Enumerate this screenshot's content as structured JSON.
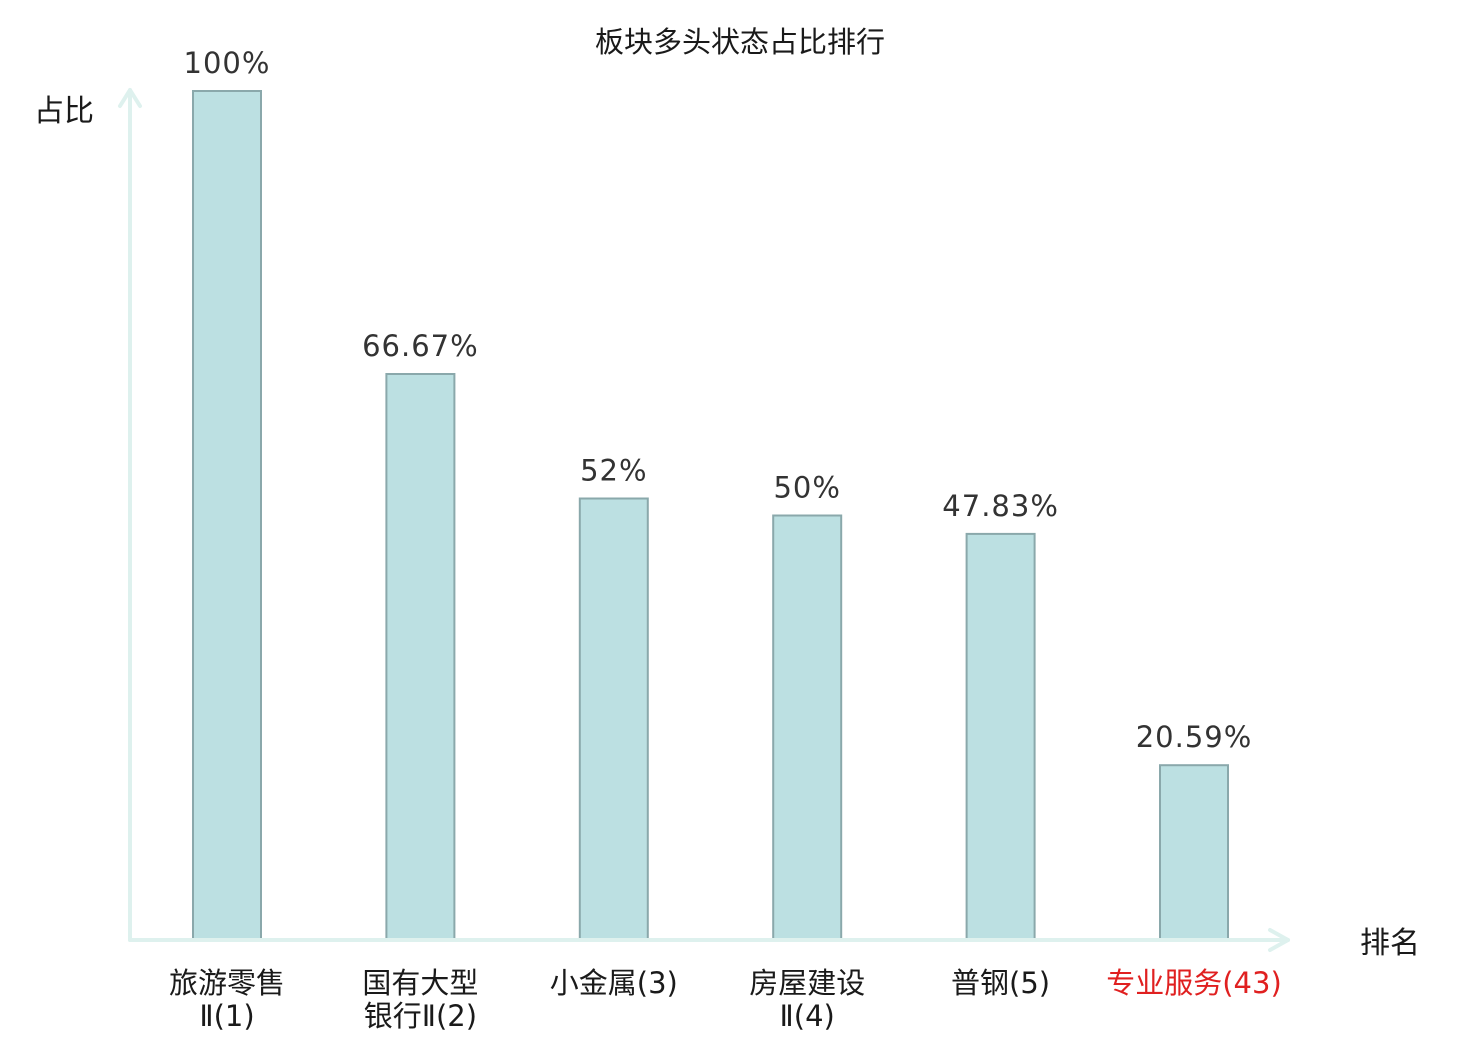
{
  "chart_data": {
    "type": "bar",
    "title": "板块多头状态占比排行",
    "ylabel": "占比",
    "xlabel": "排名",
    "ylim": [
      0,
      100
    ],
    "grid": false,
    "legend": "none",
    "categories": [
      [
        "旅游零售",
        "Ⅱ(1)"
      ],
      [
        "国有大型",
        "银行Ⅱ(2)"
      ],
      [
        "小金属(3)"
      ],
      [
        "房屋建设",
        "Ⅱ(4)"
      ],
      [
        "普钢(5)"
      ],
      [
        "专业服务(43)"
      ]
    ],
    "values": [
      100,
      66.67,
      52,
      50,
      47.83,
      20.59
    ],
    "value_labels": [
      "100%",
      "66.67%",
      "52%",
      "50%",
      "47.83%",
      "20.59%"
    ],
    "highlight_index": 5,
    "colors": {
      "bar_fill": "#bce0e2",
      "bar_stroke": "#8aa8ab",
      "axis": "#def1ee",
      "label_text": "#1a1a1a",
      "value_text": "#333333",
      "highlight_text": "#e02020"
    }
  }
}
